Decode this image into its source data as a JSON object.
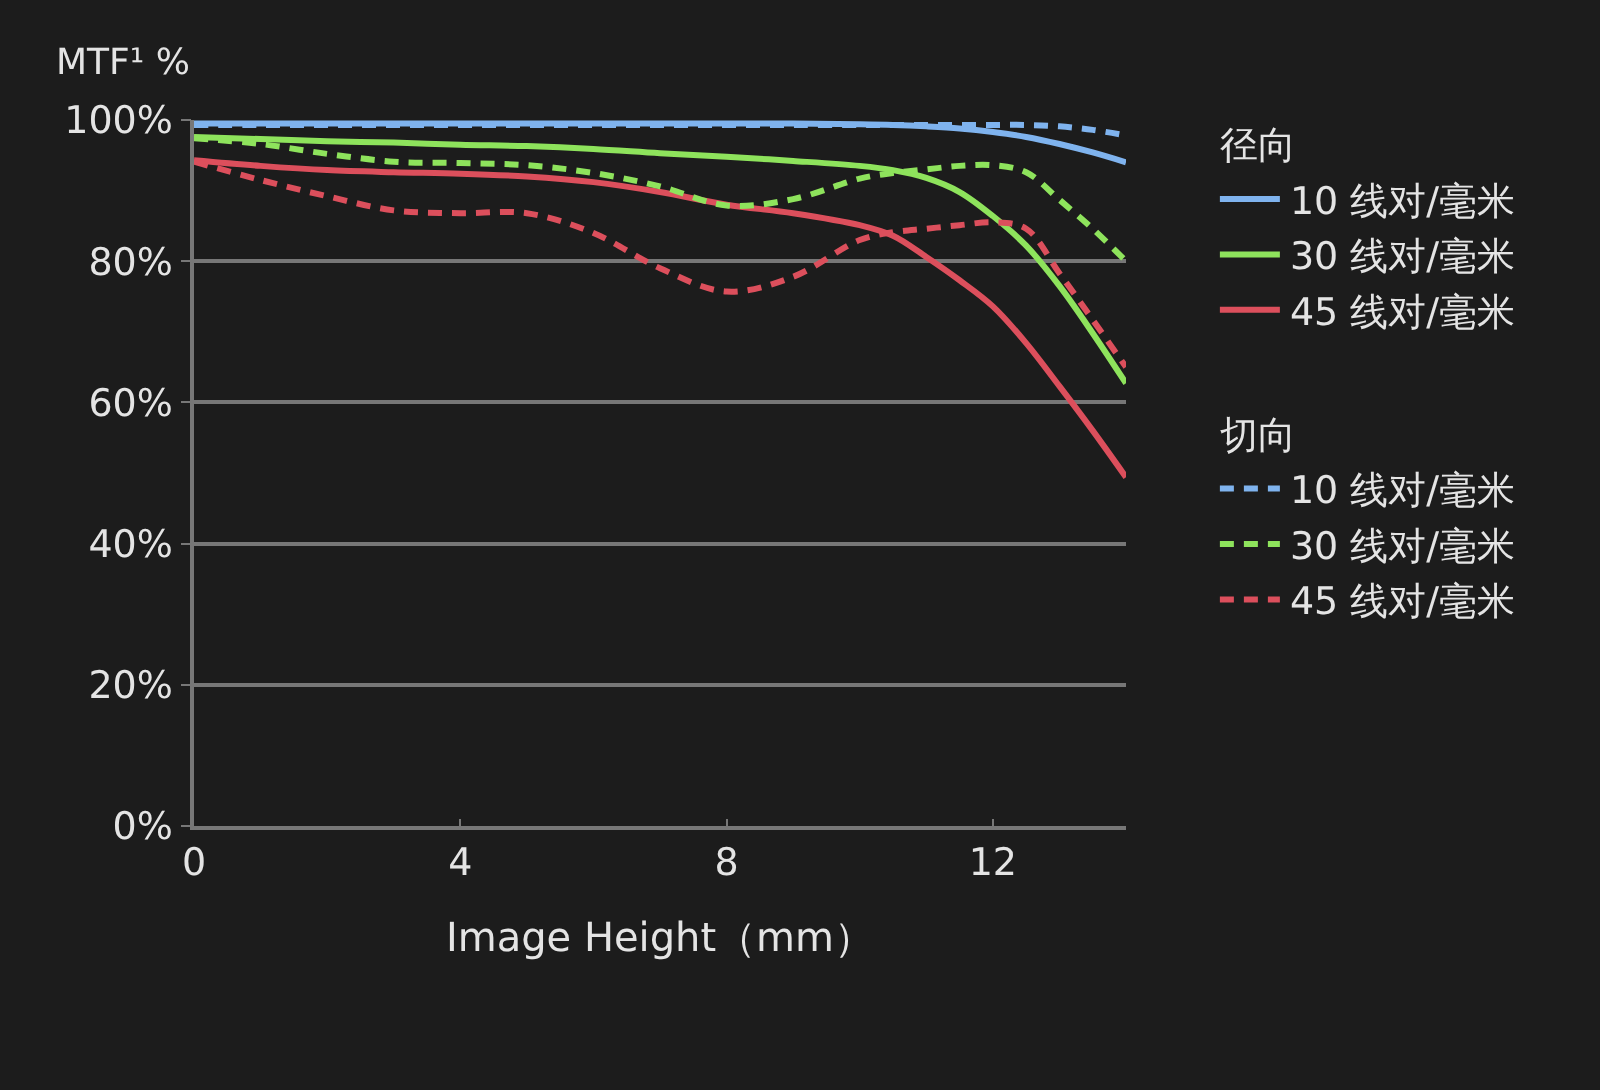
{
  "chart_data": {
    "type": "line",
    "ylabel": "MTF¹ %",
    "xlabel": "Image Height（mm）",
    "legend_title": [
      "径向",
      "切向"
    ],
    "x": [
      0,
      1,
      2,
      3,
      4,
      5,
      6,
      7,
      8,
      9,
      10,
      10.5,
      11,
      11.5,
      12,
      12.5,
      13,
      13.5,
      14
    ],
    "series": [
      {
        "name": "10 线对/毫米",
        "color": "#7fb3ee",
        "line_style": "solid",
        "values": [
          99.5,
          99.5,
          99.5,
          99.5,
          99.5,
          99.5,
          99.5,
          99.5,
          99.5,
          99.5,
          99.4,
          99.3,
          99.1,
          98.8,
          98.3,
          97.6,
          96.6,
          95.4,
          94.0
        ]
      },
      {
        "name": "30 线对/毫米",
        "color": "#8ee35c",
        "line_style": "solid",
        "values": [
          97.6,
          97.3,
          97.0,
          96.8,
          96.5,
          96.3,
          95.9,
          95.3,
          94.8,
          94.2,
          93.5,
          92.9,
          91.8,
          89.8,
          86.4,
          82.2,
          76.5,
          69.8,
          62.7
        ]
      },
      {
        "name": "45 线对/毫米",
        "color": "#dc4f5c",
        "line_style": "solid",
        "values": [
          94.3,
          93.5,
          92.9,
          92.6,
          92.4,
          92.0,
          91.2,
          89.8,
          88.0,
          86.8,
          85.1,
          83.6,
          80.6,
          77.3,
          73.6,
          68.4,
          62.3,
          56.0,
          49.4
        ]
      },
      {
        "name": "10 线对/毫米",
        "color": "#7fb3ee",
        "line_style": "dashed",
        "values": [
          99.3,
          99.3,
          99.3,
          99.3,
          99.3,
          99.3,
          99.3,
          99.3,
          99.3,
          99.3,
          99.3,
          99.3,
          99.3,
          99.3,
          99.3,
          99.3,
          99.1,
          98.6,
          97.8
        ]
      },
      {
        "name": "30 线对/毫米",
        "color": "#8ee35c",
        "line_style": "dashed",
        "values": [
          97.4,
          96.6,
          95.2,
          94.1,
          93.9,
          93.6,
          92.5,
          90.6,
          87.9,
          88.8,
          91.7,
          92.5,
          93.0,
          93.5,
          93.6,
          92.6,
          88.7,
          84.6,
          80.0
        ]
      },
      {
        "name": "45 线对/毫米",
        "color": "#dc4f5c",
        "line_style": "dashed",
        "values": [
          94.1,
          91.5,
          89.2,
          87.2,
          86.8,
          86.8,
          84.0,
          79.0,
          75.7,
          77.8,
          83.0,
          84.1,
          84.6,
          85.1,
          85.5,
          84.6,
          78.3,
          71.7,
          65.0
        ]
      }
    ],
    "xlim": [
      0,
      14
    ],
    "xticks": [
      0,
      4,
      8,
      12
    ],
    "ylim": [
      0,
      100
    ],
    "yticks": [
      {
        "value": 0,
        "label": "0%"
      },
      {
        "value": 20,
        "label": "20%"
      },
      {
        "value": 40,
        "label": "40%"
      },
      {
        "value": 60,
        "label": "60%"
      },
      {
        "value": 80,
        "label": "80%"
      },
      {
        "value": 100,
        "label": "100%"
      }
    ],
    "grid": "y",
    "legend": "right"
  }
}
